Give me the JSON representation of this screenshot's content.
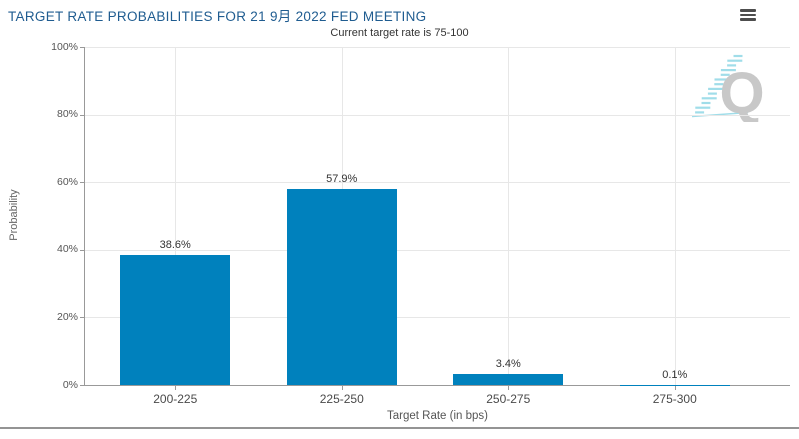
{
  "chart_data": {
    "type": "bar",
    "title": "TARGET RATE PROBABILITIES FOR 21 9月 2022 FED MEETING",
    "subtitle": "Current target rate is 75-100",
    "categories": [
      "200-225",
      "225-250",
      "250-275",
      "275-300"
    ],
    "values": [
      38.6,
      57.9,
      3.4,
      0.1
    ],
    "value_labels": [
      "38.6%",
      "57.9%",
      "3.4%",
      "0.1%"
    ],
    "xlabel": "Target Rate (in bps)",
    "ylabel": "Probability",
    "ylim": [
      0,
      100
    ],
    "yticks": [
      0,
      20,
      40,
      60,
      80,
      100
    ],
    "ytick_labels": [
      "0%",
      "20%",
      "40%",
      "60%",
      "80%",
      "100%"
    ],
    "grid": true,
    "legend": "none"
  },
  "colors": {
    "bar": "#0081BD",
    "title_text": "#1F5C90",
    "subtitle_text": "#333333",
    "axis_line": "#999999",
    "gridline": "#E7E7E7",
    "value_label_text": "#333333",
    "category_label_text": "#4A4A4A",
    "ytick_label_text": "#555555",
    "watermark_gray": "#C8C8C8",
    "watermark_teal": "#9BDCE8",
    "menu_icon": "#4D4D4D",
    "bottom_border": "#949494"
  },
  "watermark": {
    "letter": "Q"
  }
}
